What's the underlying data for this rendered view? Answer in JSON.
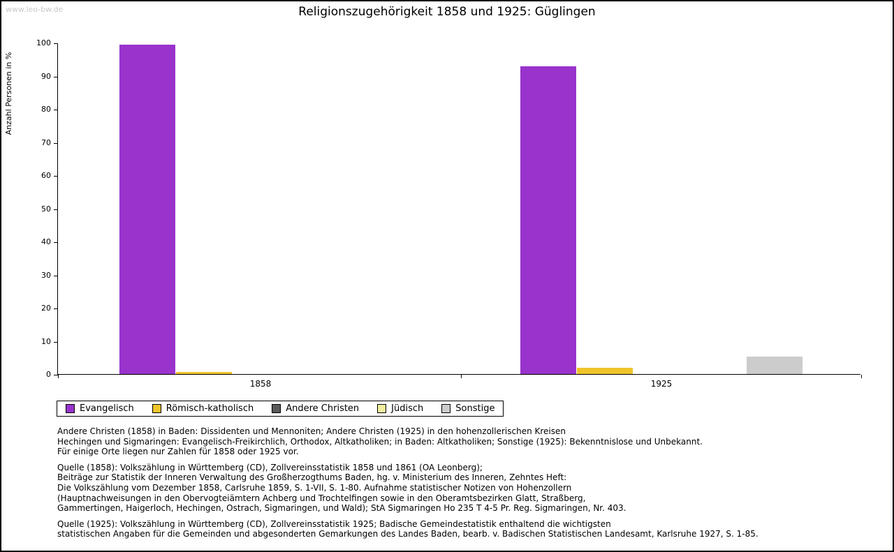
{
  "page": {
    "watermark": "www.leo-bw.de"
  },
  "chart_data": {
    "type": "bar",
    "title": "Religionszugehörigkeit 1858 und 1925: Güglingen",
    "xlabel": "",
    "ylabel": "Anzahl Personen in %",
    "ylim": [
      0,
      100
    ],
    "ytick_step": 10,
    "grid": false,
    "legend_position": "bottom",
    "categories": [
      "1858",
      "1925"
    ],
    "series": [
      {
        "name": "Evangelisch",
        "color": "#9933cc",
        "values": [
          99.4,
          92.9
        ]
      },
      {
        "name": "Römisch-katholisch",
        "color": "#efc52c",
        "values": [
          0.6,
          1.9
        ]
      },
      {
        "name": "Andere Christen",
        "color": "#5a5a5a",
        "values": [
          0,
          0
        ]
      },
      {
        "name": "Jüdisch",
        "color": "#f2efa0",
        "values": [
          0,
          0
        ]
      },
      {
        "name": "Sonstige",
        "color": "#cccccc",
        "values": [
          0,
          5.3
        ]
      }
    ]
  },
  "footnotes": {
    "para1": [
      "Andere Christen (1858) in Baden: Dissidenten und Mennoniten; Andere Christen (1925) in den hohenzollerischen Kreisen",
      "Hechingen und Sigmaringen: Evangelisch-Freikirchlich, Orthodox, Altkatholiken; in Baden: Altkatholiken; Sonstige (1925): Bekenntnislose und Unbekannt.",
      "Für einige Orte liegen nur Zahlen für 1858 oder 1925 vor."
    ],
    "para2": [
      "Quelle (1858): Volkszählung in Württemberg (CD), Zollvereinsstatistik 1858 und 1861 (OA Leonberg);",
      "Beiträge zur Statistik der Inneren Verwaltung des Großherzogthums Baden, hg. v. Ministerium des Inneren, Zehntes Heft:",
      "Die Volkszählung vom Dezember 1858, Carlsruhe 1859, S. 1-VII, S. 1-80. Aufnahme statistischer Notizen von Hohenzollern",
      "(Hauptnachweisungen in den Obervogteiämtern Achberg und Trochtelfingen sowie in den Oberamtsbezirken Glatt, Straßberg,",
      "Gammertingen, Haigerloch, Hechingen, Ostrach, Sigmaringen, und Wald); StA Sigmaringen Ho 235 T 4-5 Pr. Reg. Sigmaringen, Nr. 403."
    ],
    "para3": [
      "Quelle (1925): Volkszählung in Württemberg (CD), Zollvereinsstatistik 1925; Badische Gemeindestatistik enthaltend die wichtigsten",
      "statistischen Angaben für die Gemeinden und abgesonderten Gemarkungen des Landes Baden, bearb. v. Badischen Statistischen Landesamt, Karlsruhe 1927, S. 1-85."
    ]
  }
}
